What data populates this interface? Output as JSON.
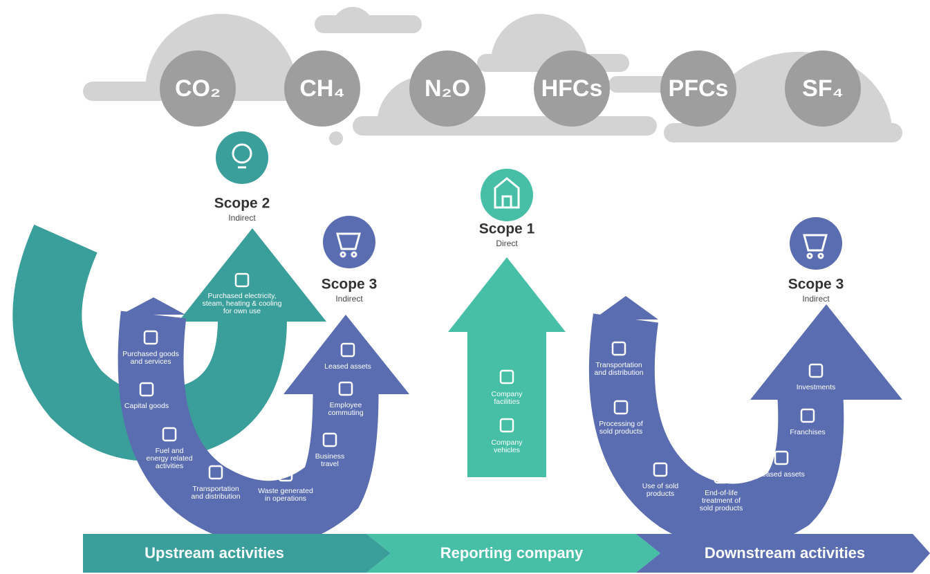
{
  "gases": [
    "CO₂",
    "CH₄",
    "N₂O",
    "HFCs",
    "PFCs",
    "SF₄"
  ],
  "scope2": {
    "title": "Scope 2",
    "subtitle": "Indirect",
    "activity": [
      "Purchased electricity,",
      "steam, heating & cooling",
      "for own use"
    ]
  },
  "scope1": {
    "title": "Scope 1",
    "subtitle": "Direct",
    "activities": [
      [
        "Company",
        "facilities"
      ],
      [
        "Company",
        "vehicles"
      ]
    ]
  },
  "scope3_upstream": {
    "title": "Scope 3",
    "subtitle": "Indirect",
    "activities": [
      [
        "Purchased goods",
        "and services"
      ],
      [
        "Capital goods"
      ],
      [
        "Fuel and",
        "energy related",
        "activities"
      ],
      [
        "Transportation",
        "and distribution"
      ],
      [
        "Waste generated",
        "in operations"
      ],
      [
        "Business",
        "travel"
      ],
      [
        "Employee",
        "commuting"
      ],
      [
        "Leased assets"
      ]
    ]
  },
  "scope3_downstream": {
    "title": "Scope 3",
    "subtitle": "Indirect",
    "activities": [
      [
        "Transportation",
        "and distribution"
      ],
      [
        "Processing of",
        "sold products"
      ],
      [
        "Use of sold",
        "products"
      ],
      [
        "End-of-life",
        "treatment of",
        "sold products"
      ],
      [
        "Leased assets"
      ],
      [
        "Franchises"
      ],
      [
        "Investments"
      ]
    ]
  },
  "stages": [
    "Upstream activities",
    "Reporting company",
    "Downstream activities"
  ]
}
